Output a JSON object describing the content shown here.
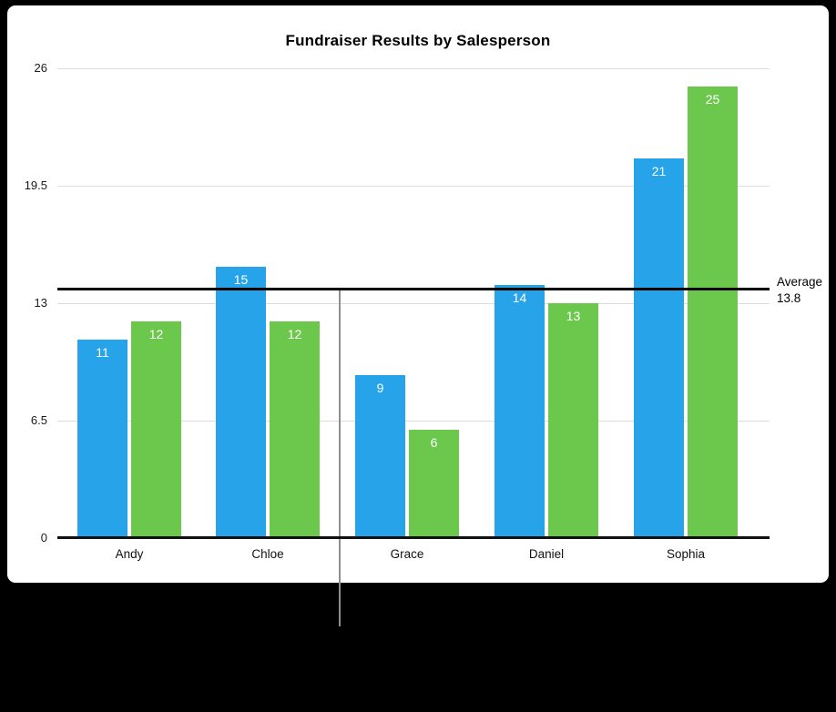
{
  "chart_data": {
    "type": "bar",
    "title": "Fundraiser Results by Salesperson",
    "categories": [
      "Andy",
      "Chloe",
      "Grace",
      "Daniel",
      "Sophia"
    ],
    "series": [
      {
        "name": "series-blue",
        "color": "#27a4e9",
        "values": [
          11,
          15,
          9,
          14,
          21
        ]
      },
      {
        "name": "series-green",
        "color": "#6cc84c",
        "values": [
          12,
          12,
          6,
          13,
          25
        ]
      }
    ],
    "yticks": [
      0,
      6.5,
      13,
      19.5,
      26
    ],
    "ylim": [
      0,
      26
    ],
    "xlabel": "",
    "ylabel": "",
    "grid": true,
    "legend": "none",
    "value_labels_shown": true,
    "annotations": [
      {
        "type": "average-line",
        "label": "Average",
        "value": 13.8,
        "display": "13.8",
        "color": "#000000"
      }
    ]
  },
  "colors": {
    "background": "#000000",
    "panel": "#ffffff",
    "gridline": "#dddddd",
    "axis": "#101010",
    "bar_blue": "#27a4e9",
    "bar_green": "#6cc84c",
    "guide_line": "#8f8f8f",
    "value_label_text": "#ffffff"
  }
}
